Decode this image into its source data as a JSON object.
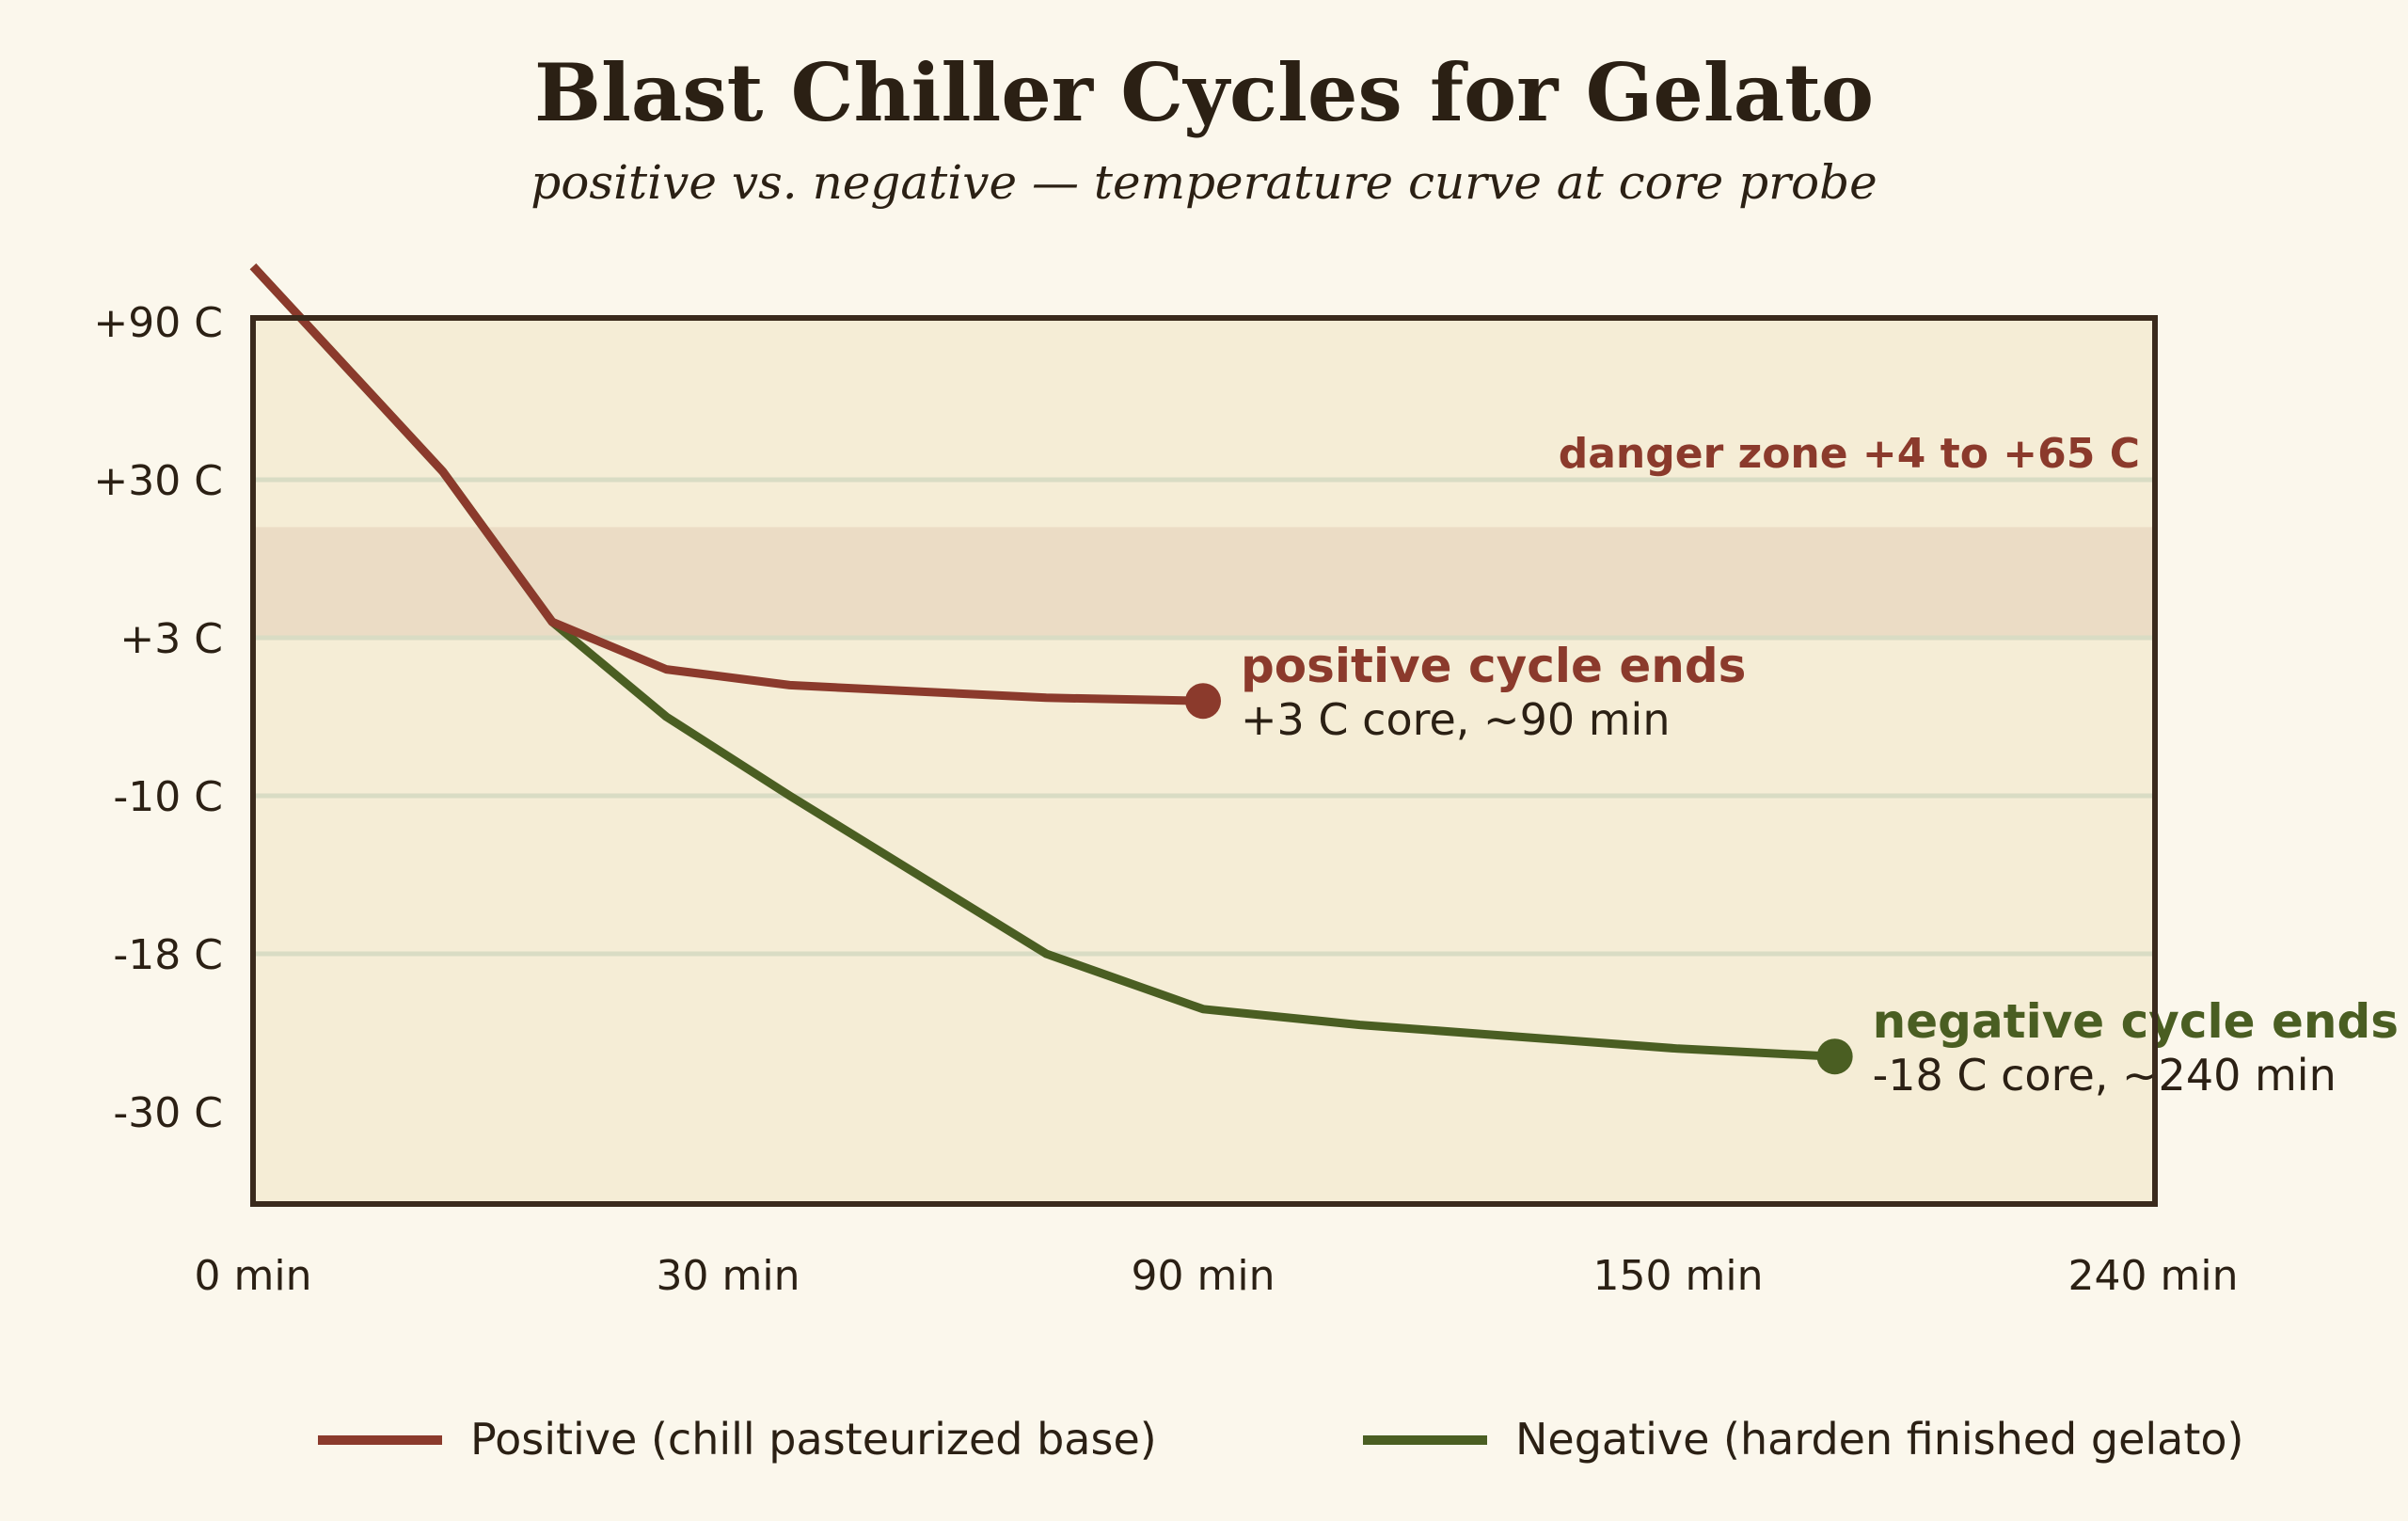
{
  "chart_data": {
    "type": "line",
    "title": "Blast Chiller Cycles for Gelato",
    "subtitle": "positive vs. negative — temperature curve at core probe",
    "xlabel": "",
    "ylabel": "",
    "x_ticks": [
      {
        "pos": 0,
        "label": "0 min"
      },
      {
        "pos": 1,
        "label": "30 min"
      },
      {
        "pos": 2,
        "label": "90 min"
      },
      {
        "pos": 3,
        "label": "150 min"
      },
      {
        "pos": 4,
        "label": "240 min"
      }
    ],
    "y_ticks": [
      {
        "pos": 0,
        "label": "+90 C"
      },
      {
        "pos": 1,
        "label": "+30 C"
      },
      {
        "pos": 2,
        "label": "+3 C"
      },
      {
        "pos": 3,
        "label": "-10 C"
      },
      {
        "pos": 4,
        "label": "-18 C"
      },
      {
        "pos": 5,
        "label": "-30 C"
      }
    ],
    "grid_lines_at": [
      1,
      2,
      3,
      4
    ],
    "danger_zone": {
      "label": "danger zone +4 to +65 C",
      "from": 1.3,
      "to": 2.0
    },
    "series": [
      {
        "name": "Positive (chill pasteurized base)",
        "color": "#8b3a2c",
        "points": [
          [
            0,
            -0.35
          ],
          [
            0.2,
            0.3
          ],
          [
            0.4,
            0.95
          ],
          [
            0.63,
            1.9
          ],
          [
            0.87,
            2.2
          ],
          [
            1.13,
            2.3
          ],
          [
            1.67,
            2.38
          ],
          [
            2.0,
            2.4
          ]
        ],
        "end_label": "positive cycle ends",
        "end_note": "+3 C core, ~90 min"
      },
      {
        "name": "Negative (harden finished gelato)",
        "color": "#4a5e22",
        "points": [
          [
            0,
            -0.35
          ],
          [
            0.2,
            0.3
          ],
          [
            0.4,
            0.95
          ],
          [
            0.63,
            1.9
          ],
          [
            0.87,
            2.5
          ],
          [
            1.13,
            3.0
          ],
          [
            1.67,
            4.0
          ],
          [
            2.0,
            4.35
          ],
          [
            2.33,
            4.45
          ],
          [
            3.0,
            4.6
          ],
          [
            3.33,
            4.65
          ]
        ],
        "end_label": "negative cycle ends",
        "end_note": "-18 C core, ~240 min"
      }
    ],
    "legend_position": "bottom"
  }
}
